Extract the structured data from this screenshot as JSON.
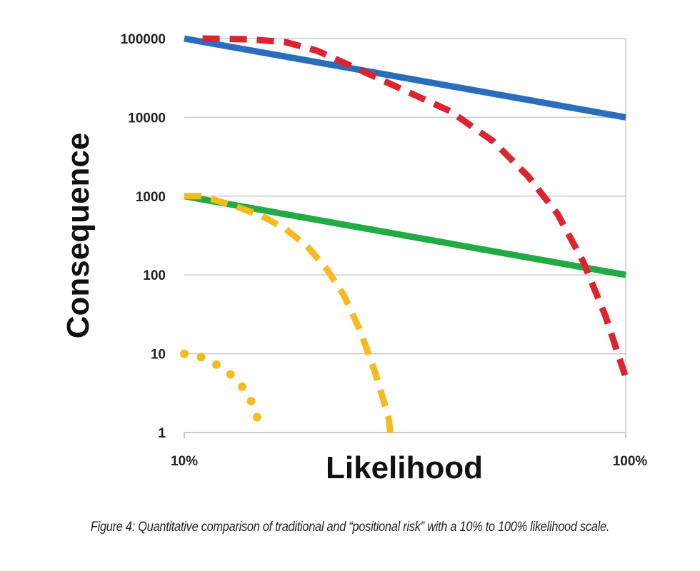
{
  "chart_data": {
    "type": "line",
    "xlabel": "Likelihood",
    "ylabel": "Consequence",
    "x_scale": "log",
    "y_scale": "log",
    "xlim": [
      0.1,
      1.0
    ],
    "ylim": [
      1,
      100000
    ],
    "x_ticks": [
      {
        "value": 0.1,
        "label": "10%"
      },
      {
        "value": 1.0,
        "label": "100%"
      }
    ],
    "y_ticks": [
      {
        "value": 100000,
        "label": "100000"
      },
      {
        "value": 10000,
        "label": "10000"
      },
      {
        "value": 1000,
        "label": "1000"
      },
      {
        "value": 100,
        "label": "100"
      },
      {
        "value": 10,
        "label": "10"
      },
      {
        "value": 1,
        "label": "1"
      }
    ],
    "grid": "horizontal",
    "series": [
      {
        "style": "solid",
        "color": "#2a6ebb",
        "x": [
          0.1,
          1.0
        ],
        "y": [
          100000,
          10000
        ]
      },
      {
        "style": "solid",
        "color": "#22aa44",
        "x": [
          0.1,
          1.0
        ],
        "y": [
          1000,
          100
        ]
      },
      {
        "style": "dashed",
        "color": "#dd2230",
        "x": [
          0.11,
          0.14,
          0.17,
          0.2,
          0.25,
          0.3,
          0.4,
          0.5,
          0.6,
          0.7,
          0.8,
          0.9,
          0.95,
          1.0
        ],
        "y": [
          100000,
          98000,
          90000,
          70000,
          40000,
          25000,
          12000,
          5000,
          1800,
          600,
          150,
          30,
          12,
          5
        ]
      },
      {
        "style": "dashed",
        "color": "#f5bb1e",
        "x": [
          0.1,
          0.11,
          0.13,
          0.15,
          0.17,
          0.19,
          0.21,
          0.23,
          0.25,
          0.27,
          0.29,
          0.293
        ],
        "y": [
          1000,
          1000,
          750,
          560,
          380,
          230,
          120,
          55,
          20,
          6,
          1.6,
          1
        ]
      },
      {
        "style": "dotted",
        "color": "#f5bb1e",
        "x": [
          0.1,
          0.11,
          0.12,
          0.13,
          0.14,
          0.145,
          0.15
        ],
        "y": [
          10,
          9,
          7,
          5,
          3,
          1.8,
          1
        ]
      }
    ]
  },
  "caption": "Figure 4: Quantitative comparison of traditional and “positional risk” with a 10% to 100% likelihood scale."
}
